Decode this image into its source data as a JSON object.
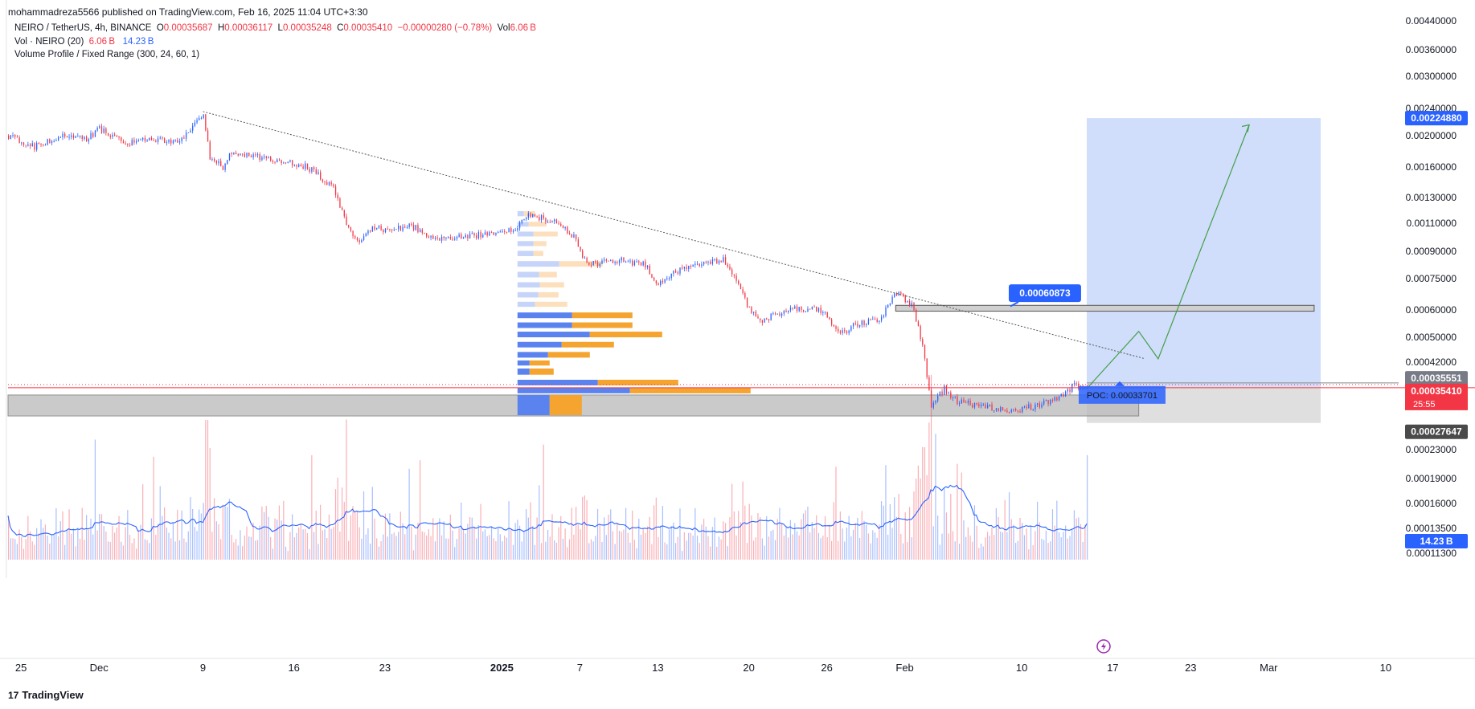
{
  "header": {
    "published_by": "mohammadreza5566 published on TradingView.com, Feb 16, 2025 11:04 UTC+3:30"
  },
  "legend": {
    "symbol": "NEIRO / TetherUS, 4h, BINANCE",
    "o_label": "O",
    "o": "0.00035687",
    "h_label": "H",
    "h": "0.00036117",
    "l_label": "L",
    "l": "0.00035248",
    "c_label": "C",
    "c": "0.00035410",
    "change": "−0.00000280 (−0.78%)",
    "vol_label": "Vol",
    "vol": "6.06 B",
    "vol_indicator": "Vol · NEIRO (20)",
    "vol_value_1": "6.06 B",
    "vol_value_2": "14.23 B",
    "volume_profile": "Volume Profile / Fixed Range (300, 24, 60, 1)"
  },
  "footer": {
    "brand": "TradingView",
    "brand_mark": "17"
  },
  "colors": {
    "up": "#2962ff",
    "down": "#f23645",
    "ma": "#2962ff",
    "target_zone": "#c8d7fa",
    "stop_zone": "#dcdcdc",
    "vp_up": "#5b83f0",
    "vp_down": "#f5a430",
    "vp_up_light": "#c5d4f8",
    "vp_down_light": "#fce0bd",
    "projection": "#43a047",
    "trendline": "#555555"
  },
  "chart_data": {
    "type": "candlestick",
    "symbol": "NEIRO/USDT",
    "timeframe": "4h",
    "y_scale": "log",
    "ylim": [
      0.000123,
      0.00046
    ],
    "xlim_days": [
      -7,
      100
    ],
    "y_ticks": [
      "0.00440000",
      "0.00360000",
      "0.00300000",
      "0.00240000",
      "0.00200000",
      "0.00160000",
      "0.00130000",
      "0.00110000",
      "0.00090000",
      "0.00075000",
      "0.00060000",
      "0.00050000",
      "0.00042000",
      "0.00023000",
      "0.00019000",
      "0.00016000",
      "0.00013500",
      "0.00011300"
    ],
    "x_ticks": [
      {
        "label": "25",
        "day": -6
      },
      {
        "label": "Dec",
        "day": 0
      },
      {
        "label": "9",
        "day": 8
      },
      {
        "label": "16",
        "day": 15
      },
      {
        "label": "23",
        "day": 22
      },
      {
        "label": "2025",
        "day": 31
      },
      {
        "label": "7",
        "day": 37
      },
      {
        "label": "13",
        "day": 43
      },
      {
        "label": "20",
        "day": 50
      },
      {
        "label": "26",
        "day": 56
      },
      {
        "label": "Feb",
        "day": 62
      },
      {
        "label": "10",
        "day": 71
      },
      {
        "label": "17",
        "day": 78
      },
      {
        "label": "23",
        "day": 84
      },
      {
        "label": "Mar",
        "day": 90
      },
      {
        "label": "10",
        "day": 99
      }
    ],
    "price_path": [
      [
        -7,
        0.002
      ],
      [
        -5,
        0.00185
      ],
      [
        -3,
        0.002
      ],
      [
        -1,
        0.00195
      ],
      [
        0,
        0.0021
      ],
      [
        2,
        0.0019
      ],
      [
        4,
        0.00195
      ],
      [
        6,
        0.0019
      ],
      [
        7,
        0.00205
      ],
      [
        8,
        0.00235
      ],
      [
        8.5,
        0.0017
      ],
      [
        9.5,
        0.0016
      ],
      [
        10,
        0.00178
      ],
      [
        12,
        0.00172
      ],
      [
        14,
        0.00168
      ],
      [
        16,
        0.0016
      ],
      [
        18,
        0.0014
      ],
      [
        19,
        0.0011
      ],
      [
        20,
        0.00095
      ],
      [
        21,
        0.00108
      ],
      [
        22,
        0.00105
      ],
      [
        24,
        0.00108
      ],
      [
        26,
        0.00098
      ],
      [
        28,
        0.001
      ],
      [
        30,
        0.00102
      ],
      [
        32,
        0.00105
      ],
      [
        33,
        0.00116
      ],
      [
        35,
        0.00112
      ],
      [
        36.5,
        0.001
      ],
      [
        37.5,
        0.00082
      ],
      [
        40,
        0.00085
      ],
      [
        42,
        0.00082
      ],
      [
        43,
        0.00072
      ],
      [
        44,
        0.00078
      ],
      [
        46,
        0.00082
      ],
      [
        48,
        0.00085
      ],
      [
        49,
        0.00074
      ],
      [
        50,
        0.0006
      ],
      [
        51,
        0.00056
      ],
      [
        53,
        0.0006
      ],
      [
        55,
        0.00061
      ],
      [
        56,
        0.00058
      ],
      [
        57,
        0.00051
      ],
      [
        58,
        0.00054
      ],
      [
        60,
        0.00056
      ],
      [
        61.3,
        0.00068
      ],
      [
        62.5,
        0.00062
      ],
      [
        63.3,
        0.00048
      ],
      [
        64,
        0.00031
      ],
      [
        65,
        0.00035
      ],
      [
        66,
        0.00032
      ],
      [
        68,
        0.00031
      ],
      [
        70,
        0.0003
      ],
      [
        72,
        0.00031
      ],
      [
        73,
        0.00032
      ],
      [
        74,
        0.00033
      ],
      [
        75,
        0.00036
      ],
      [
        76,
        0.00035
      ]
    ],
    "volume": {
      "ylim_billion": [
        0,
        120
      ],
      "last_label": "14.23 B",
      "last_value_billion": 14.23
    },
    "levels": {
      "last_price": "0.00035410",
      "countdown": "25:55",
      "prev_close": "0.00035551",
      "poc_label": "POC: 0.00033701",
      "resistance_label": "0.00060873",
      "target_label": "0.00224880",
      "stop_label": "0.00027647",
      "support_zone_label": "",
      "resistance_zone_label": ""
    },
    "target_price": 0.0022488,
    "stop_price": 0.00027647,
    "resistance_price": 0.00060873,
    "poc_price": 0.00033701,
    "last_price_value": 0.0003541,
    "support_zone": [
      0.00029,
      0.000335
    ],
    "resistance_zone": [
      0.000595,
      0.00062
    ],
    "trendline": [
      [
        8,
        0.00235
      ],
      [
        80.5,
        0.00043
      ]
    ],
    "projection_path": [
      [
        76,
        0.00035
      ],
      [
        80,
        0.00052
      ],
      [
        81.5,
        0.00043
      ],
      [
        88.5,
        0.00215
      ]
    ],
    "position_box_days": [
      76,
      94
    ],
    "volume_profile_bars": [
      {
        "price_lo": 0.00029,
        "price_hi": 0.000335,
        "up_b": 40,
        "down_b": 40
      },
      {
        "price_lo": 0.000337,
        "price_hi": 0.000352,
        "up_b": 140,
        "down_b": 150
      },
      {
        "price_lo": 0.000356,
        "price_hi": 0.000372,
        "up_b": 100,
        "down_b": 100
      },
      {
        "price_lo": 0.000383,
        "price_hi": 0.000402,
        "up_b": 15,
        "down_b": 30
      },
      {
        "price_lo": 0.000408,
        "price_hi": 0.000425,
        "up_b": 15,
        "down_b": 25
      },
      {
        "price_lo": 0.000431,
        "price_hi": 0.000451,
        "up_b": 38,
        "down_b": 52
      },
      {
        "price_lo": 0.000463,
        "price_hi": 0.000484,
        "up_b": 55,
        "down_b": 65
      },
      {
        "price_lo": 0.000497,
        "price_hi": 0.000519,
        "up_b": 90,
        "down_b": 90
      },
      {
        "price_lo": 0.000529,
        "price_hi": 0.000552,
        "up_b": 68,
        "down_b": 75
      },
      {
        "price_lo": 0.000565,
        "price_hi": 0.00059,
        "up_b": 68,
        "down_b": 75
      },
      {
        "price_lo": 0.00061,
        "price_hi": 0.000636,
        "up_b": 22,
        "down_b": 40,
        "light": true
      },
      {
        "price_lo": 0.000652,
        "price_hi": 0.000681,
        "up_b": 26,
        "down_b": 25,
        "light": true
      },
      {
        "price_lo": 0.0007,
        "price_hi": 0.000731,
        "up_b": 28,
        "down_b": 30,
        "light": true
      },
      {
        "price_lo": 0.000752,
        "price_hi": 0.000785,
        "up_b": 27,
        "down_b": 22,
        "light": true
      },
      {
        "price_lo": 0.000808,
        "price_hi": 0.000843,
        "up_b": 52,
        "down_b": 54,
        "light": true
      },
      {
        "price_lo": 0.000867,
        "price_hi": 0.000903,
        "up_b": 20,
        "down_b": 12,
        "light": true
      },
      {
        "price_lo": 0.000929,
        "price_hi": 0.000968,
        "up_b": 20,
        "down_b": 16,
        "light": true
      },
      {
        "price_lo": 0.000995,
        "price_hi": 0.001036,
        "up_b": 20,
        "down_b": 30,
        "light": true
      },
      {
        "price_lo": 0.001068,
        "price_hi": 0.00111,
        "up_b": 14,
        "down_b": 22,
        "light": true
      },
      {
        "price_lo": 0.001145,
        "price_hi": 0.00119,
        "up_b": 8,
        "down_b": 14,
        "light": true
      }
    ]
  }
}
